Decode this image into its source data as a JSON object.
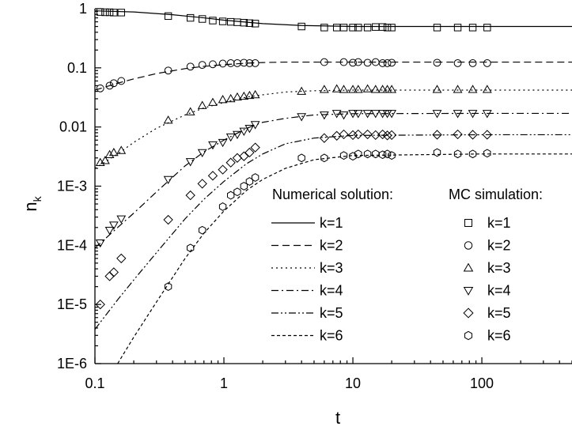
{
  "chart_data": {
    "type": "line",
    "x_scale": "log",
    "y_scale": "log",
    "xlim": [
      0.1,
      500
    ],
    "ylim": [
      1e-06,
      1
    ],
    "xlabel": "t",
    "ylabel": "n",
    "ylabel_sub": "k",
    "x_ticks": [
      {
        "value": 0.1,
        "label": "0.1"
      },
      {
        "value": 1,
        "label": "1"
      },
      {
        "value": 10,
        "label": "10"
      },
      {
        "value": 100,
        "label": "100"
      }
    ],
    "y_ticks": [
      {
        "value": 1,
        "label": "1"
      },
      {
        "value": 0.1,
        "label": "0.1"
      },
      {
        "value": 0.01,
        "label": "0.01"
      },
      {
        "value": 0.001,
        "label": "1E-3"
      },
      {
        "value": 0.0001,
        "label": "1E-4"
      },
      {
        "value": 1e-05,
        "label": "1E-5"
      },
      {
        "value": 1e-06,
        "label": "1E-6"
      }
    ],
    "grid": false,
    "legend": {
      "placement": "lower-right",
      "lines_title": "Numerical solution:",
      "markers_title": "MC simulation:"
    },
    "series": [
      {
        "name": "k=1",
        "dash": "",
        "marker": "square",
        "curve": {
          "x": [
            0.1,
            0.2,
            0.4,
            0.7,
            1,
            2,
            4,
            10,
            30,
            100,
            500
          ],
          "y": [
            0.92,
            0.88,
            0.79,
            0.7,
            0.64,
            0.56,
            0.52,
            0.5,
            0.5,
            0.5,
            0.5
          ]
        },
        "points": {
          "x": [
            0.11,
            0.12,
            0.13,
            0.14,
            0.16,
            0.37,
            0.55,
            0.68,
            0.82,
            0.98,
            1.13,
            1.27,
            1.43,
            1.58,
            1.75,
            4,
            6,
            7.5,
            8.5,
            10,
            11,
            13,
            15,
            17,
            18.5,
            20,
            45,
            65,
            85,
            110
          ],
          "y": [
            0.88,
            0.87,
            0.87,
            0.86,
            0.86,
            0.75,
            0.7,
            0.67,
            0.63,
            0.61,
            0.6,
            0.59,
            0.58,
            0.57,
            0.56,
            0.5,
            0.48,
            0.48,
            0.48,
            0.48,
            0.48,
            0.48,
            0.49,
            0.49,
            0.48,
            0.48,
            0.48,
            0.48,
            0.48,
            0.48
          ]
        }
      },
      {
        "name": "k=2",
        "dash": "9,5",
        "marker": "circle",
        "curve": {
          "x": [
            0.1,
            0.15,
            0.2,
            0.3,
            0.5,
            0.7,
            1,
            1.5,
            2,
            3,
            5,
            10,
            100,
            500
          ],
          "y": [
            0.042,
            0.055,
            0.065,
            0.08,
            0.097,
            0.106,
            0.113,
            0.12,
            0.123,
            0.125,
            0.125,
            0.125,
            0.125,
            0.125
          ]
        },
        "points": {
          "x": [
            0.11,
            0.13,
            0.14,
            0.16,
            0.37,
            0.55,
            0.68,
            0.82,
            0.98,
            1.13,
            1.27,
            1.43,
            1.58,
            1.75,
            6,
            8.5,
            10,
            11,
            13,
            15,
            17,
            18.5,
            20,
            45,
            65,
            85,
            110
          ],
          "y": [
            0.045,
            0.05,
            0.055,
            0.06,
            0.09,
            0.105,
            0.112,
            0.115,
            0.118,
            0.12,
            0.12,
            0.122,
            0.12,
            0.12,
            0.125,
            0.125,
            0.122,
            0.125,
            0.122,
            0.125,
            0.12,
            0.12,
            0.122,
            0.122,
            0.12,
            0.12,
            0.12
          ]
        }
      },
      {
        "name": "k=3",
        "dash": "2,4",
        "marker": "triangle-up",
        "curve": {
          "x": [
            0.1,
            0.15,
            0.2,
            0.3,
            0.5,
            0.7,
            1,
            1.5,
            2,
            3,
            5,
            10,
            100,
            500
          ],
          "y": [
            0.002,
            0.0035,
            0.0055,
            0.0095,
            0.016,
            0.021,
            0.026,
            0.032,
            0.035,
            0.039,
            0.041,
            0.042,
            0.042,
            0.042
          ]
        },
        "points": {
          "x": [
            0.11,
            0.12,
            0.13,
            0.14,
            0.16,
            0.37,
            0.55,
            0.68,
            0.82,
            0.98,
            1.13,
            1.27,
            1.43,
            1.58,
            1.75,
            4,
            6,
            7.5,
            8.5,
            10,
            11,
            13,
            15,
            17,
            18.5,
            20,
            45,
            65,
            85,
            110
          ],
          "y": [
            0.0025,
            0.0027,
            0.0034,
            0.0037,
            0.004,
            0.013,
            0.018,
            0.023,
            0.026,
            0.029,
            0.03,
            0.032,
            0.033,
            0.034,
            0.035,
            0.04,
            0.043,
            0.044,
            0.043,
            0.043,
            0.043,
            0.044,
            0.043,
            0.043,
            0.043,
            0.043,
            0.043,
            0.043,
            0.043,
            0.043
          ]
        }
      },
      {
        "name": "k=4",
        "dash": "9,4,2,4",
        "marker": "triangle-down",
        "curve": {
          "x": [
            0.1,
            0.15,
            0.2,
            0.3,
            0.5,
            0.7,
            1,
            1.5,
            2,
            3,
            5,
            10,
            100,
            500
          ],
          "y": [
            9e-05,
            0.0002,
            0.00035,
            0.0008,
            0.0022,
            0.0038,
            0.006,
            0.0095,
            0.012,
            0.014,
            0.016,
            0.0168,
            0.017,
            0.017
          ]
        },
        "points": {
          "x": [
            0.11,
            0.13,
            0.14,
            0.16,
            0.37,
            0.55,
            0.68,
            0.82,
            0.98,
            1.13,
            1.27,
            1.43,
            1.58,
            1.75,
            4,
            6,
            7.5,
            8.5,
            10,
            11,
            13,
            15,
            17,
            18.5,
            20,
            45,
            65,
            85,
            110
          ],
          "y": [
            0.00011,
            0.00018,
            0.00022,
            0.00028,
            0.0013,
            0.0026,
            0.0037,
            0.005,
            0.0055,
            0.0068,
            0.0075,
            0.0085,
            0.0095,
            0.011,
            0.015,
            0.016,
            0.017,
            0.016,
            0.017,
            0.017,
            0.017,
            0.017,
            0.017,
            0.017,
            0.017,
            0.017,
            0.017,
            0.017,
            0.017
          ]
        }
      },
      {
        "name": "k=5",
        "dash": "9,3,2,3,2,3",
        "marker": "diamond",
        "curve": {
          "x": [
            0.1,
            0.15,
            0.2,
            0.3,
            0.5,
            0.7,
            1,
            1.5,
            2,
            3,
            5,
            10,
            100,
            500
          ],
          "y": [
            3.8e-06,
            1.2e-05,
            2.6e-05,
            7.5e-05,
            0.00028,
            0.0006,
            0.0012,
            0.0024,
            0.0035,
            0.0052,
            0.0065,
            0.0072,
            0.0074,
            0.0074
          ]
        },
        "points": {
          "x": [
            0.11,
            0.13,
            0.14,
            0.16,
            0.37,
            0.55,
            0.68,
            0.82,
            0.98,
            1.13,
            1.27,
            1.43,
            1.58,
            1.75,
            6,
            7.5,
            8.5,
            10,
            11,
            13,
            15,
            17,
            18.5,
            20,
            45,
            65,
            85,
            110
          ],
          "y": [
            1e-05,
            3e-05,
            3.5e-05,
            6e-05,
            0.00027,
            0.0007,
            0.0011,
            0.0015,
            0.0019,
            0.0025,
            0.003,
            0.0032,
            0.0037,
            0.0045,
            0.0065,
            0.0071,
            0.0075,
            0.0073,
            0.0075,
            0.0075,
            0.0073,
            0.0075,
            0.0072,
            0.0073,
            0.0074,
            0.0075,
            0.0074,
            0.0074
          ]
        }
      },
      {
        "name": "k=6",
        "dash": "4,3",
        "marker": "hexagon",
        "curve": {
          "x": [
            0.15,
            0.2,
            0.3,
            0.5,
            0.7,
            1,
            1.5,
            2,
            3,
            5,
            10,
            100,
            500
          ],
          "y": [
            1e-06,
            2.8e-06,
            1.1e-05,
            6e-05,
            0.00016,
            0.00038,
            0.00085,
            0.0013,
            0.002,
            0.0028,
            0.0033,
            0.0035,
            0.0035
          ]
        },
        "points": {
          "x": [
            0.37,
            0.55,
            0.68,
            0.98,
            1.13,
            1.27,
            1.43,
            1.58,
            1.75,
            4,
            6,
            8.5,
            10,
            11,
            13,
            15,
            17,
            18.5,
            20,
            45,
            65,
            85,
            110
          ],
          "y": [
            2e-05,
            9e-05,
            0.00018,
            0.00045,
            0.0007,
            0.0008,
            0.001,
            0.0012,
            0.0014,
            0.003,
            0.003,
            0.0033,
            0.0032,
            0.0035,
            0.0035,
            0.0035,
            0.0034,
            0.0035,
            0.0033,
            0.0037,
            0.0035,
            0.0035,
            0.0036
          ]
        }
      }
    ]
  }
}
